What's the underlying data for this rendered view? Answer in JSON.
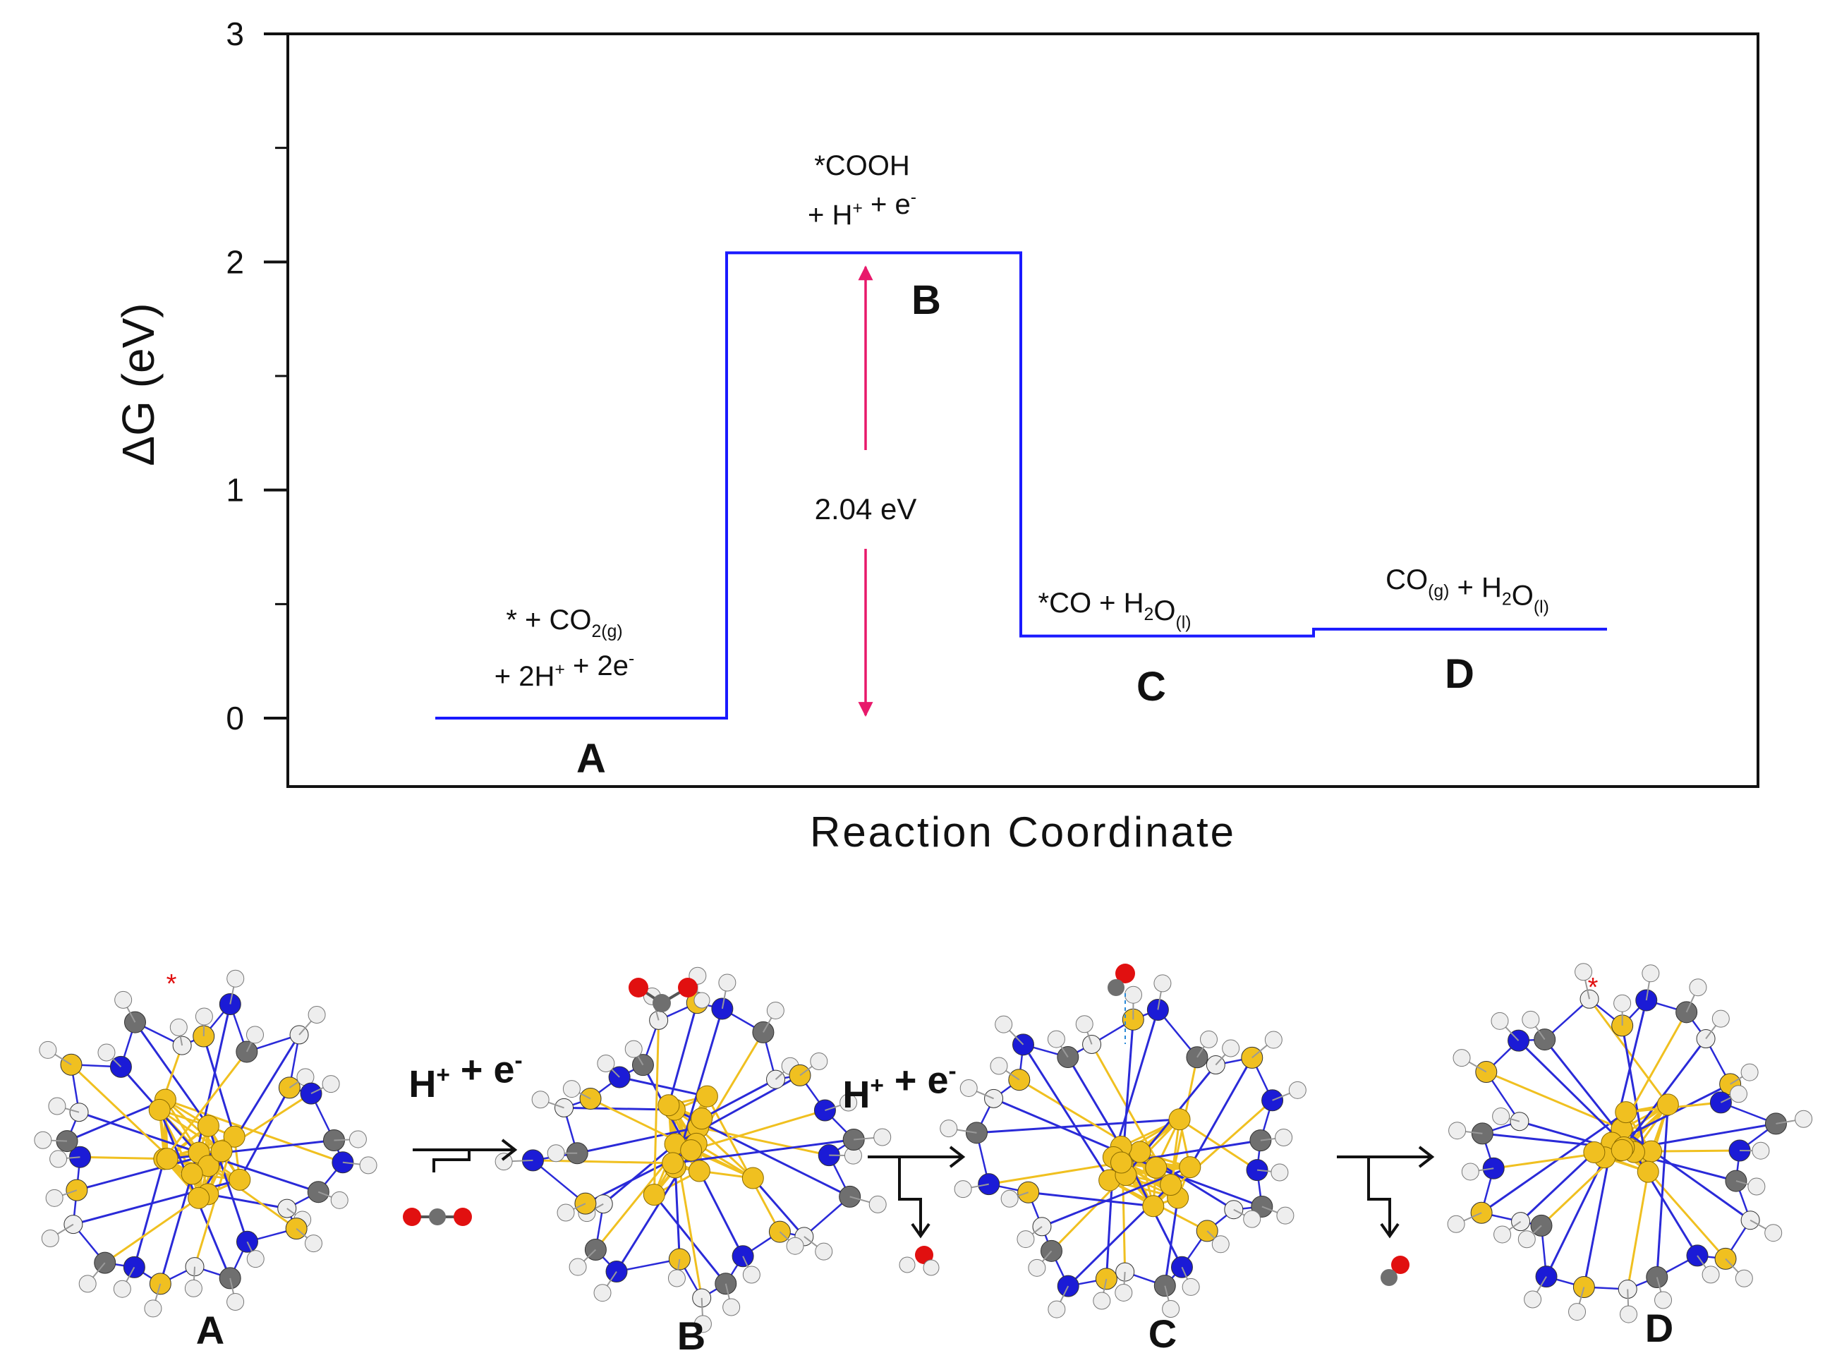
{
  "chart_data": {
    "type": "line",
    "subtype": "free-energy-diagram",
    "ylabel": "ΔG (eV)",
    "xlabel": "Reaction Coordinate",
    "ylim": [
      -0.3,
      3
    ],
    "yticks": [
      0,
      1,
      2,
      3
    ],
    "ytick_labels": [
      "0",
      "1",
      "2",
      "3"
    ],
    "grid": false,
    "line_color": "#1a1aff",
    "arrow_color": "#e8196b",
    "series": [
      {
        "steps": [
          {
            "state": "A",
            "y": 0.0,
            "label_lines": [
              "* + CO2(g)",
              "+ 2H+ + 2e-"
            ]
          },
          {
            "state": "B",
            "y": 2.04,
            "label_lines": [
              "*COOH",
              "+ H+ + e-"
            ]
          },
          {
            "state": "C",
            "y": 0.36,
            "label_lines": [
              "*CO + H2O(l)"
            ]
          },
          {
            "state": "D",
            "y": 0.39,
            "label_lines": [
              "CO(g) + H2O(l)"
            ]
          }
        ]
      }
    ],
    "annotation": {
      "text": "2.04 eV",
      "from": 0.0,
      "to": 2.04
    }
  },
  "scheme": {
    "states": [
      "A",
      "B",
      "C",
      "D"
    ],
    "steps": [
      {
        "label": "H+ + e-",
        "released": "CO2"
      },
      {
        "label": "H+ + e-",
        "released": "H2O"
      },
      {
        "label": "",
        "released": "CO"
      }
    ],
    "active_site_marker": "*",
    "colors": {
      "gold": "#f0c020",
      "nitrogen": "#1b1bd6",
      "carbon": "#6f6f6f",
      "hydrogen": "#eeeeee",
      "oxygen": "#e11010"
    }
  }
}
